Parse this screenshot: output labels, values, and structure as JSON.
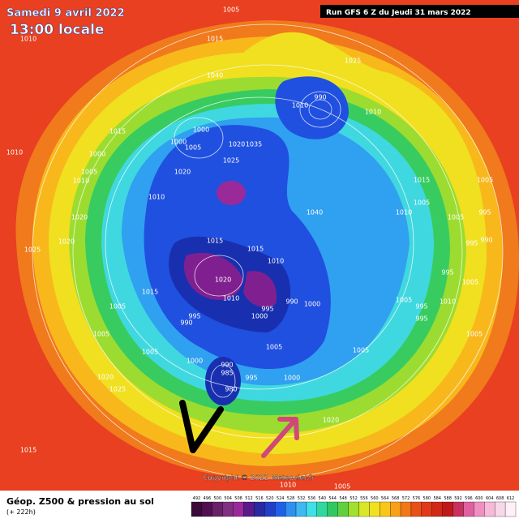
{
  "header": {
    "date": "Samedi 9 avril 2022",
    "time": "13:00 locale",
    "run": "Run GFS 6 Z du Jeudi 31 mars 2022"
  },
  "map": {
    "copyright": "Copyright © 2022 Meteociel.fr",
    "isobar_labels": [
      "1005",
      "1010",
      "1015",
      "1025",
      "1040",
      "990",
      "1010",
      "1010",
      "1015",
      "1000",
      "1000",
      "1005",
      "1020",
      "1035",
      "1010",
      "1000",
      "1025",
      "1005",
      "1020",
      "1010",
      "1015",
      "1005",
      "1010",
      "1005",
      "1010",
      "1040",
      "1005",
      "1020",
      "995",
      "995",
      "1020",
      "990",
      "1015",
      "1015",
      "1025",
      "1010",
      "1020",
      "995",
      "1005",
      "1015",
      "1010",
      "995",
      "990",
      "1000",
      "1005",
      "995",
      "995",
      "1010",
      "1005",
      "1000",
      "990",
      "995",
      "1005",
      "1005",
      "1005",
      "1005",
      "1005",
      "1000",
      "990",
      "985",
      "995",
      "1000",
      "1020",
      "980",
      "1025",
      "1020",
      "1015",
      "1010",
      "1005"
    ]
  },
  "footer": {
    "title": "Géop. Z500 & pression au sol",
    "lead": "(+ 222h)"
  },
  "colorbar": {
    "ticks": [
      492,
      496,
      500,
      504,
      508,
      512,
      516,
      520,
      524,
      528,
      532,
      536,
      540,
      544,
      548,
      552,
      556,
      560,
      564,
      568,
      572,
      576,
      580,
      584,
      588,
      592,
      596,
      600,
      604,
      608,
      612
    ],
    "colors": [
      "#3a0a3a",
      "#501050",
      "#682068",
      "#803080",
      "#9a2a9a",
      "#5a1a8a",
      "#2a2aa0",
      "#2040c8",
      "#2060e8",
      "#3090f0",
      "#40b8f0",
      "#40e0e8",
      "#30d8a0",
      "#30c860",
      "#60d040",
      "#a0e030",
      "#d8e828",
      "#f0e020",
      "#f8c818",
      "#f8a018",
      "#f07818",
      "#e85018",
      "#e03818",
      "#d02818",
      "#c01818",
      "#c83060",
      "#e060a0",
      "#f090c0",
      "#f8b8d8",
      "#f8d8e8",
      "#fff0f8"
    ]
  }
}
